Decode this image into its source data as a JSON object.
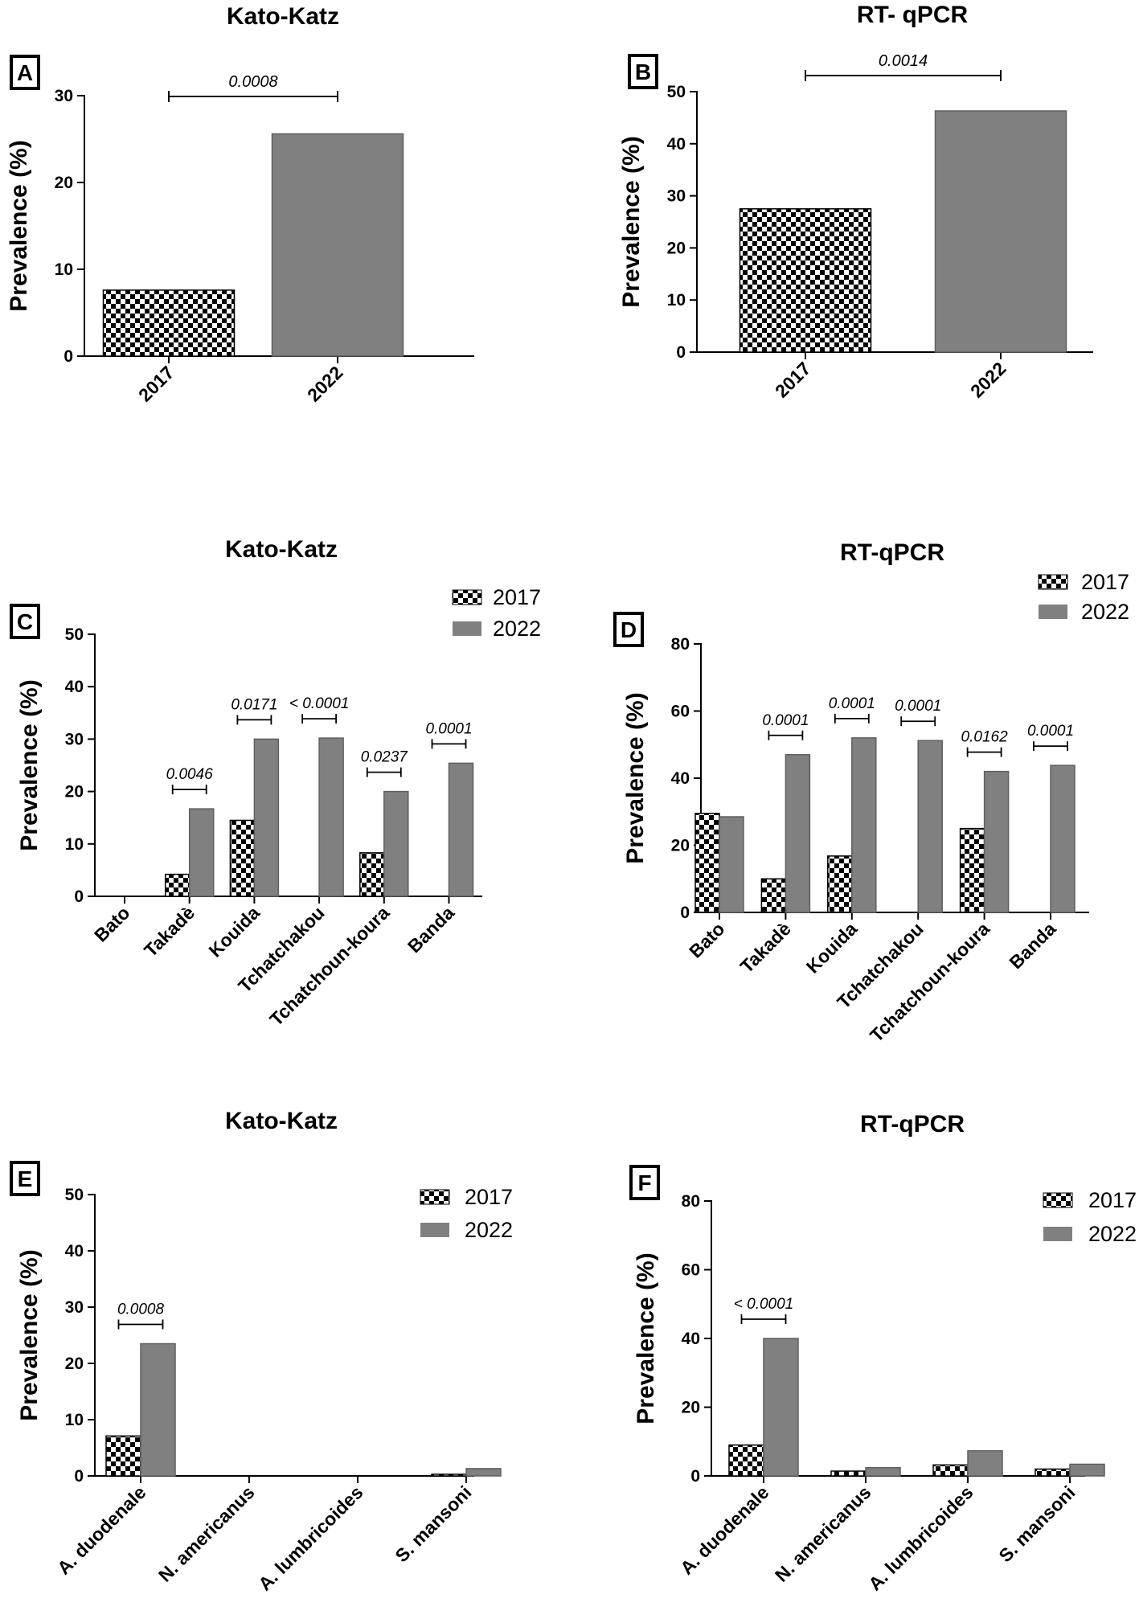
{
  "colors": {
    "bar_2022": "#808080",
    "checker_dark": "#000000",
    "checker_light": "#ffffff",
    "axis": "#000000"
  },
  "chart_data": [
    {
      "panel": "A",
      "type": "bar",
      "title": "Kato-Katz",
      "ylabel": "Prevalence (%)",
      "ylim": [
        0,
        30
      ],
      "yticks": [
        0,
        10,
        20,
        30
      ],
      "categories": [
        "2017",
        "2022"
      ],
      "series": [
        {
          "name": "prevalence",
          "values": [
            7.6,
            25.6
          ],
          "patterns": [
            "checker",
            "solid"
          ]
        }
      ],
      "comparisons": [
        {
          "from": 0,
          "to": 1,
          "label": "0.0008"
        }
      ]
    },
    {
      "panel": "B",
      "type": "bar",
      "title": "RT- qPCR",
      "ylabel": "Prevalence (%)",
      "ylim": [
        0,
        50
      ],
      "yticks": [
        0,
        10,
        20,
        30,
        40,
        50
      ],
      "categories": [
        "2017",
        "2022"
      ],
      "series": [
        {
          "name": "prevalence",
          "values": [
            27.5,
            46.3
          ],
          "patterns": [
            "checker",
            "solid"
          ]
        }
      ],
      "comparisons": [
        {
          "from": 0,
          "to": 1,
          "label": "0.0014"
        }
      ]
    },
    {
      "panel": "C",
      "type": "bar",
      "title": "Kato-Katz",
      "ylabel": "Prevalence (%)",
      "ylim": [
        0,
        50
      ],
      "yticks": [
        0,
        10,
        20,
        30,
        40,
        50
      ],
      "categories": [
        "Bato",
        "Takadè",
        "Kouida",
        "Tchatchakou",
        "Tchatchoun-koura",
        "Banda"
      ],
      "series": [
        {
          "name": "2017",
          "values": [
            0,
            4.2,
            14.5,
            0,
            8.3,
            0
          ]
        },
        {
          "name": "2022",
          "values": [
            0,
            16.7,
            30.0,
            30.2,
            20.0,
            25.4
          ]
        }
      ],
      "pvalues": [
        "",
        "0.0046",
        "0.0171",
        "< 0.0001",
        "0.0237",
        "0.0001"
      ],
      "pvalue_italic": [
        true,
        true,
        true,
        true,
        true,
        false
      ],
      "legend": [
        "2017",
        "2022"
      ]
    },
    {
      "panel": "D",
      "type": "bar",
      "title": "RT-qPCR",
      "ylabel": "Prevalence (%)",
      "ylim": [
        0,
        80
      ],
      "yticks": [
        0,
        20,
        40,
        60,
        80
      ],
      "categories": [
        "Bato",
        "Takadè",
        "Kouida",
        "Tchatchakou",
        "Tchatchoun-koura",
        "Banda"
      ],
      "series": [
        {
          "name": "2017",
          "values": [
            29.5,
            10.0,
            16.8,
            0,
            25.0,
            0
          ]
        },
        {
          "name": "2022",
          "values": [
            28.5,
            47.0,
            52.0,
            51.2,
            42.0,
            43.8
          ]
        }
      ],
      "pvalues": [
        "",
        "0.0001",
        "0.0001",
        "0.0001",
        "0.0162",
        "0.0001"
      ],
      "pvalue_italic": [
        true,
        true,
        true,
        true,
        true,
        true
      ],
      "legend": [
        "2017",
        "2022"
      ]
    },
    {
      "panel": "E",
      "type": "bar",
      "title": "Kato-Katz",
      "ylabel": "Prevalence (%)",
      "ylim": [
        0,
        50
      ],
      "yticks": [
        0,
        10,
        20,
        30,
        40,
        50
      ],
      "categories": [
        "A. duodenale",
        "N. americanus",
        "A. lumbricoides",
        "S. mansoni"
      ],
      "series": [
        {
          "name": "2017",
          "values": [
            7.1,
            0,
            0,
            0.3
          ]
        },
        {
          "name": "2022",
          "values": [
            23.5,
            0,
            0,
            1.3
          ]
        }
      ],
      "pvalues": [
        "0.0008",
        "",
        "",
        ""
      ],
      "pvalue_italic": [
        true,
        true,
        true,
        true
      ],
      "legend": [
        "2017",
        "2022"
      ]
    },
    {
      "panel": "F",
      "type": "bar",
      "title": "RT-qPCR",
      "ylabel": "Prevalence (%)",
      "ylim": [
        0,
        80
      ],
      "yticks": [
        0,
        20,
        40,
        60,
        80
      ],
      "categories": [
        "A. duodenale",
        "N. americanus",
        "A. lumbricoides",
        "S. mansoni"
      ],
      "series": [
        {
          "name": "2017",
          "values": [
            9.0,
            1.4,
            3.2,
            2.0
          ]
        },
        {
          "name": "2022",
          "values": [
            40.0,
            2.4,
            7.3,
            3.4
          ]
        }
      ],
      "pvalues": [
        "< 0.0001",
        "",
        "",
        ""
      ],
      "pvalue_italic": [
        true,
        true,
        true,
        true
      ],
      "legend": [
        "2017",
        "2022"
      ]
    }
  ]
}
